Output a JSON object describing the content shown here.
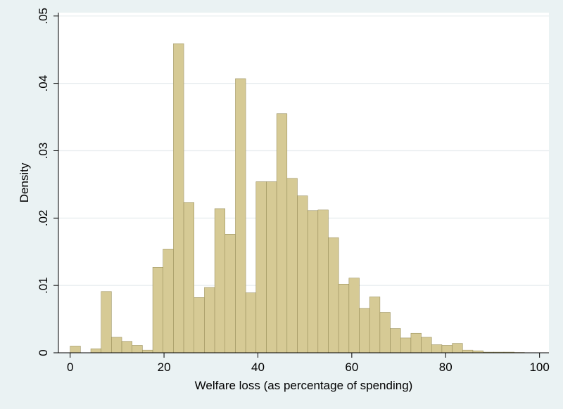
{
  "chart_data": {
    "type": "bar",
    "subtype": "histogram",
    "xlabel": "Welfare loss (as percentage of spending)",
    "ylabel": "Density",
    "xlim": [
      -2.5,
      102
    ],
    "ylim": [
      0,
      0.0505
    ],
    "x_ticks": [
      0,
      20,
      40,
      60,
      80,
      100
    ],
    "x_tick_labels": [
      "0",
      "20",
      "40",
      "60",
      "80",
      "100"
    ],
    "y_ticks": [
      0,
      0.01,
      0.02,
      0.03,
      0.04,
      0.05
    ],
    "y_tick_labels": [
      "0",
      ".01",
      ".02",
      ".03",
      ".04",
      ".05"
    ],
    "grid": "horizontal",
    "bin_width": 2.2,
    "bin_start": 0,
    "values": [
      0.001,
      0,
      0.0006,
      0.0091,
      0.0023,
      0.0017,
      0.0011,
      0.0004,
      0.0127,
      0.0154,
      0.0459,
      0.0223,
      0.0082,
      0.0097,
      0.0214,
      0.0176,
      0.0407,
      0.0089,
      0.0254,
      0.0254,
      0.0355,
      0.0259,
      0.0233,
      0.0211,
      0.0212,
      0.0171,
      0.0102,
      0.0111,
      0.0066,
      0.0083,
      0.006,
      0.0036,
      0.0022,
      0.0029,
      0.0023,
      0.0012,
      0.0011,
      0.0014,
      0.0004,
      0.0003,
      0.0001,
      0.0001,
      0.0001,
      5e-05,
      0,
      0
    ]
  },
  "colors": {
    "background": "#eaf2f3",
    "plot_background": "#ffffff",
    "bar_fill": "#d6ca95",
    "bar_stroke": "#8f8551",
    "gridline": "#e6ecee",
    "axis": "#000000"
  }
}
